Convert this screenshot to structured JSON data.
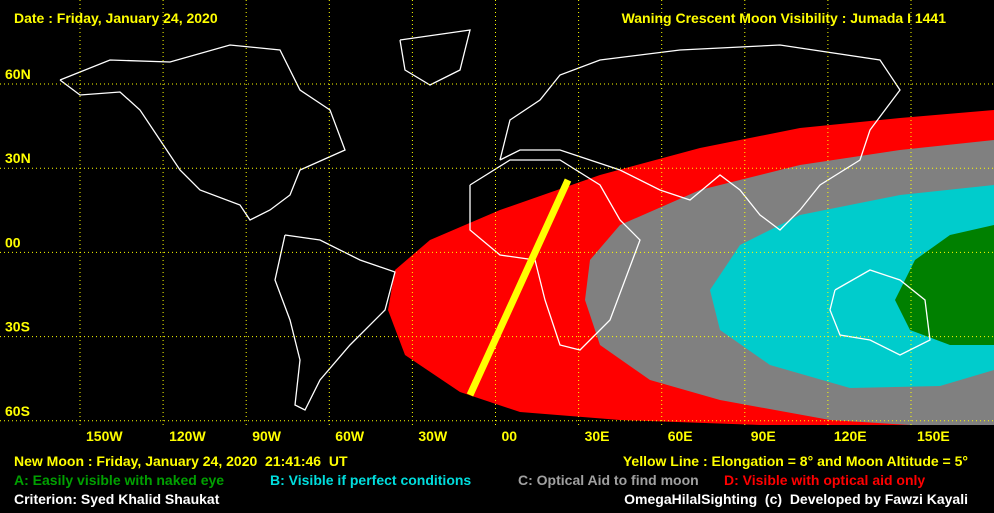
{
  "header": {
    "date": "Date : Friday, January 24, 2020",
    "title": "Waning Crescent Moon Visibility : Jumada I 1441"
  },
  "map": {
    "latitude_labels": [
      "60N",
      "30N",
      "00",
      "30S",
      "60S"
    ],
    "longitude_labels": [
      "150W",
      "120W",
      "90W",
      "60W",
      "30W",
      "00",
      "30E",
      "60E",
      "90E",
      "120E",
      "150E"
    ]
  },
  "footer": {
    "new_moon": "New Moon : Friday, January 24, 2020  21:41:46  UT",
    "yellow_line": "Yellow Line : Elongation = 8° and Moon Altitude = 5°",
    "legend": [
      {
        "label": "A: Easily visible with naked eye",
        "color": "#008000"
      },
      {
        "label": "B: Visible if perfect conditions",
        "color": "#00cccc"
      },
      {
        "label": "C: Optical Aid to find moon",
        "color": "#808080"
      },
      {
        "label": "D: Visible with optical aid only",
        "color": "#ff0000"
      }
    ],
    "criterion": "Criterion: Syed Khalid Shaukat",
    "credit": "OmegaHilalSighting  (c)  Developed by Fawzi Kayali"
  }
}
